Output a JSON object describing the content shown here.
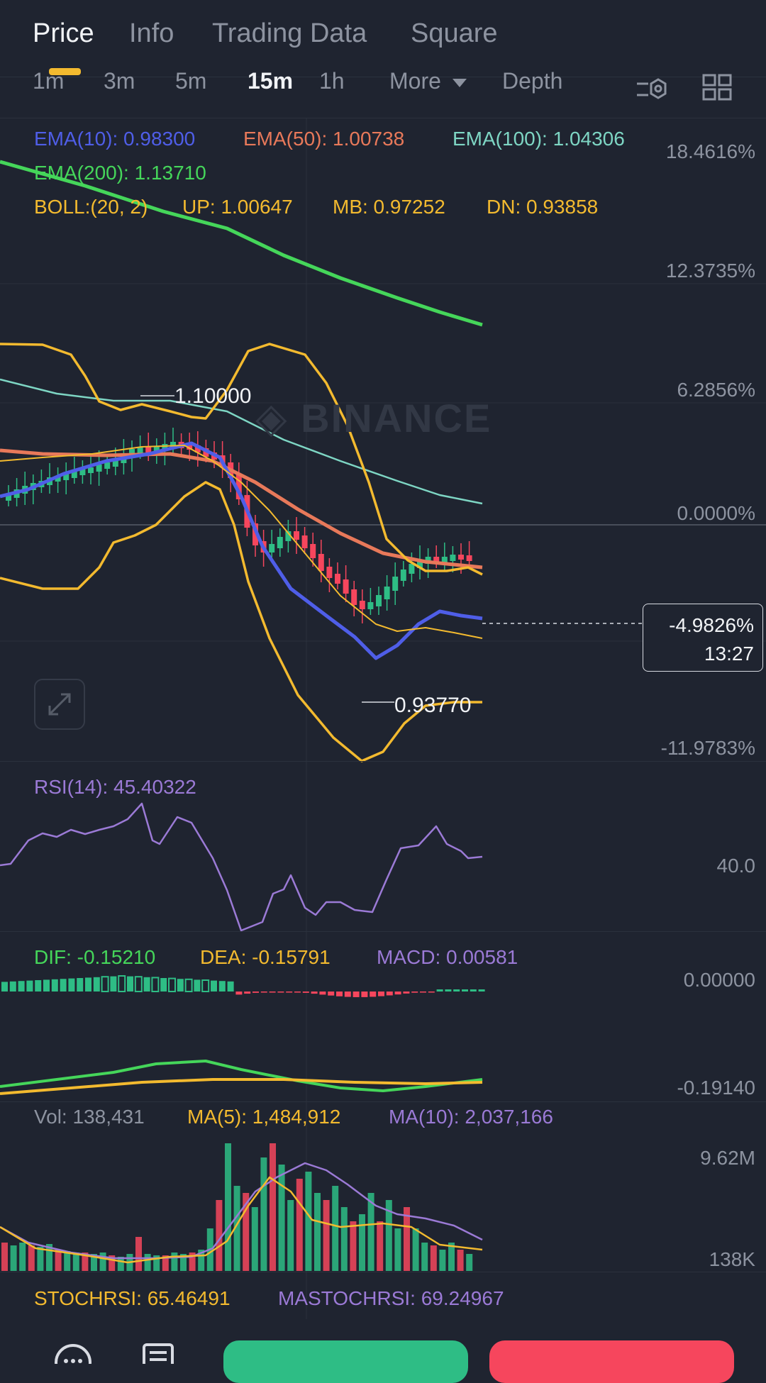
{
  "tabs": [
    "Price",
    "Info",
    "Trading Data",
    "Square"
  ],
  "intervals": [
    "1m",
    "3m",
    "5m",
    "15m",
    "1h",
    "More",
    "Depth"
  ],
  "active_interval": "15m",
  "ema": {
    "ema10": "EMA(10): 0.98300",
    "ema50": "EMA(50): 1.00738",
    "ema100": "EMA(100): 1.04306",
    "ema200": "EMA(200): 1.13710"
  },
  "boll": {
    "params": "BOLL:(20, 2)",
    "up": "UP: 1.00647",
    "mb": "MB: 0.97252",
    "dn": "DN: 0.93858"
  },
  "price_axis": [
    "18.4616%",
    "12.3735%",
    "6.2856%",
    "0.0000%",
    "-11.9783%"
  ],
  "high_label": "1.10000",
  "low_label": "0.93770",
  "current": {
    "change": "-4.9826%",
    "countdown": "13:27"
  },
  "watermark": "BINANCE",
  "rsi": {
    "label": "RSI(14): 45.40322",
    "axis": "40.0"
  },
  "macd": {
    "dif": "DIF: -0.15210",
    "dea": "DEA: -0.15791",
    "macd": "MACD: 0.00581",
    "axis_top": "0.00000",
    "axis_bottom": "-0.19140"
  },
  "volume": {
    "vol": "Vol: 138,431",
    "ma5": "MA(5): 1,484,912",
    "ma10": "MA(10): 2,037,166",
    "axis_top": "9.62M",
    "axis_bottom": "138K"
  },
  "stochrsi": {
    "stoch": "STOCHRSI: 65.46491",
    "mastoch": "MASTOCHRSI: 69.24967"
  },
  "colors": {
    "ema10": "#4f5ee8",
    "ema50": "#e8795a",
    "ema100": "#7ed6c4",
    "ema200": "#45d65a",
    "boll": "#f3ba2f",
    "up": "#2ebd85",
    "down": "#f6465d",
    "rsi": "#9b7ad6"
  }
}
